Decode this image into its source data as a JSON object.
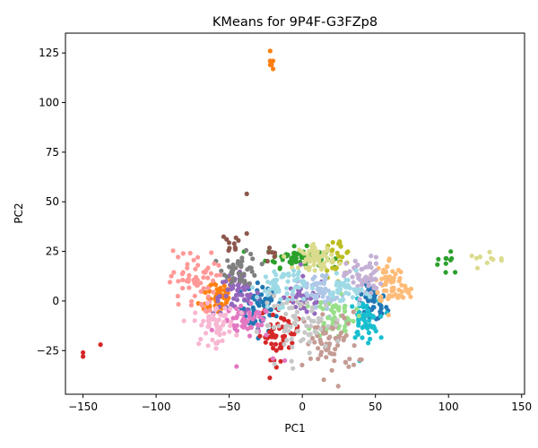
{
  "chart_data": {
    "type": "scatter",
    "title": "KMeans for 9P4F-G3FZp8",
    "xlabel": "PC1",
    "ylabel": "PC2",
    "xlim": [
      -162,
      152
    ],
    "ylim": [
      -47,
      135
    ],
    "xticks": [
      -150,
      -100,
      -50,
      0,
      50,
      100,
      150
    ],
    "yticks": [
      -25,
      0,
      25,
      50,
      75,
      100,
      125
    ],
    "grid": false,
    "legend": "none",
    "clusters": [
      {
        "color": "#1f77b4",
        "blobs": [
          {
            "c": [
              -28,
              -3
            ],
            "s": [
              7,
              6
            ],
            "n": 70
          },
          {
            "c": [
              48,
              -2
            ],
            "s": [
              5,
              5
            ],
            "n": 45
          }
        ]
      },
      {
        "color": "#ff7f0e",
        "blobs": [
          {
            "c": [
              -58,
              3
            ],
            "s": [
              6,
              5
            ],
            "n": 55
          }
        ],
        "points": [
          [
            -22,
            126
          ],
          [
            -22,
            121
          ],
          [
            -21,
            119
          ],
          [
            -20,
            117
          ],
          [
            -22,
            119
          ],
          [
            -20,
            121
          ]
        ]
      },
      {
        "color": "#2ca02c",
        "blobs": [
          {
            "c": [
              -5,
              22
            ],
            "s": [
              10,
              2.5
            ],
            "n": 55
          },
          {
            "c": [
              100,
              18
            ],
            "s": [
              9,
              4
            ],
            "n": 10
          }
        ]
      },
      {
        "color": "#d62728",
        "blobs": [
          {
            "c": [
              -15,
              -15
            ],
            "s": [
              7,
              7
            ],
            "n": 55
          }
        ],
        "points": [
          [
            -150,
            -26
          ],
          [
            -150,
            -28
          ],
          [
            -138,
            -22
          ]
        ]
      },
      {
        "color": "#9467bd",
        "blobs": [
          {
            "c": [
              -45,
              3
            ],
            "s": [
              8,
              5
            ],
            "n": 55
          },
          {
            "c": [
              2,
              2
            ],
            "s": [
              7,
              5
            ],
            "n": 40
          }
        ]
      },
      {
        "color": "#8c564b",
        "blobs": [
          {
            "c": [
              -50,
              28
            ],
            "s": [
              4,
              3
            ],
            "n": 10
          },
          {
            "c": [
              -21,
              23
            ],
            "s": [
              3,
              2
            ],
            "n": 6
          }
        ],
        "points": [
          [
            -38,
            54
          ],
          [
            -38,
            34
          ]
        ]
      },
      {
        "color": "#e377c2",
        "blobs": [
          {
            "c": [
              -38,
              -11
            ],
            "s": [
              9,
              4
            ],
            "n": 50
          }
        ],
        "points": [
          [
            -45,
            -33
          ],
          [
            -20,
            -29
          ],
          [
            -12,
            -30
          ]
        ]
      },
      {
        "color": "#7f7f7f",
        "blobs": [
          {
            "c": [
              -42,
              16
            ],
            "s": [
              6,
              4
            ],
            "n": 45
          }
        ]
      },
      {
        "color": "#bcbd22",
        "blobs": [
          {
            "c": [
              24,
              22
            ],
            "s": [
              5,
              5
            ],
            "n": 25
          }
        ]
      },
      {
        "color": "#17becf",
        "blobs": [
          {
            "c": [
              42,
              -10
            ],
            "s": [
              5,
              5
            ],
            "n": 55
          }
        ]
      },
      {
        "color": "#aec7e8",
        "blobs": [
          {
            "c": [
              12,
              3
            ],
            "s": [
              9,
              6
            ],
            "n": 55
          }
        ]
      },
      {
        "color": "#ffbb78",
        "blobs": [
          {
            "c": [
              60,
              10
            ],
            "s": [
              5,
              6
            ],
            "n": 55
          },
          {
            "c": [
              68,
              4
            ],
            "s": [
              4,
              2
            ],
            "n": 15
          }
        ]
      },
      {
        "color": "#98df8a",
        "blobs": [
          {
            "c": [
              22,
              -8
            ],
            "s": [
              7,
              5
            ],
            "n": 55
          }
        ]
      },
      {
        "color": "#ff9896",
        "blobs": [
          {
            "c": [
              -75,
              10
            ],
            "s": [
              8,
              8
            ],
            "n": 60
          }
        ]
      },
      {
        "color": "#c5b0d5",
        "blobs": [
          {
            "c": [
              42,
              12
            ],
            "s": [
              6,
              5
            ],
            "n": 55
          }
        ]
      },
      {
        "color": "#c49c94",
        "blobs": [
          {
            "c": [
              20,
              -22
            ],
            "s": [
              9,
              8
            ],
            "n": 70
          }
        ]
      },
      {
        "color": "#f7b6d2",
        "blobs": [
          {
            "c": [
              -60,
              -12
            ],
            "s": [
              7,
              5
            ],
            "n": 55
          }
        ]
      },
      {
        "color": "#c7c7c7",
        "blobs": [
          {
            "c": [
              0,
              -12
            ],
            "s": [
              14,
              7
            ],
            "n": 70
          }
        ]
      },
      {
        "color": "#dbdb8d",
        "blobs": [
          {
            "c": [
              10,
              22
            ],
            "s": [
              6,
              3
            ],
            "n": 60
          },
          {
            "c": [
              130,
              21
            ],
            "s": [
              8,
              1.5
            ],
            "n": 10
          }
        ]
      },
      {
        "color": "#9edae5",
        "blobs": [
          {
            "c": [
              -15,
              8
            ],
            "s": [
              8,
              5
            ],
            "n": 55
          },
          {
            "c": [
              30,
              5
            ],
            "s": [
              6,
              4
            ],
            "n": 35
          }
        ]
      }
    ]
  }
}
